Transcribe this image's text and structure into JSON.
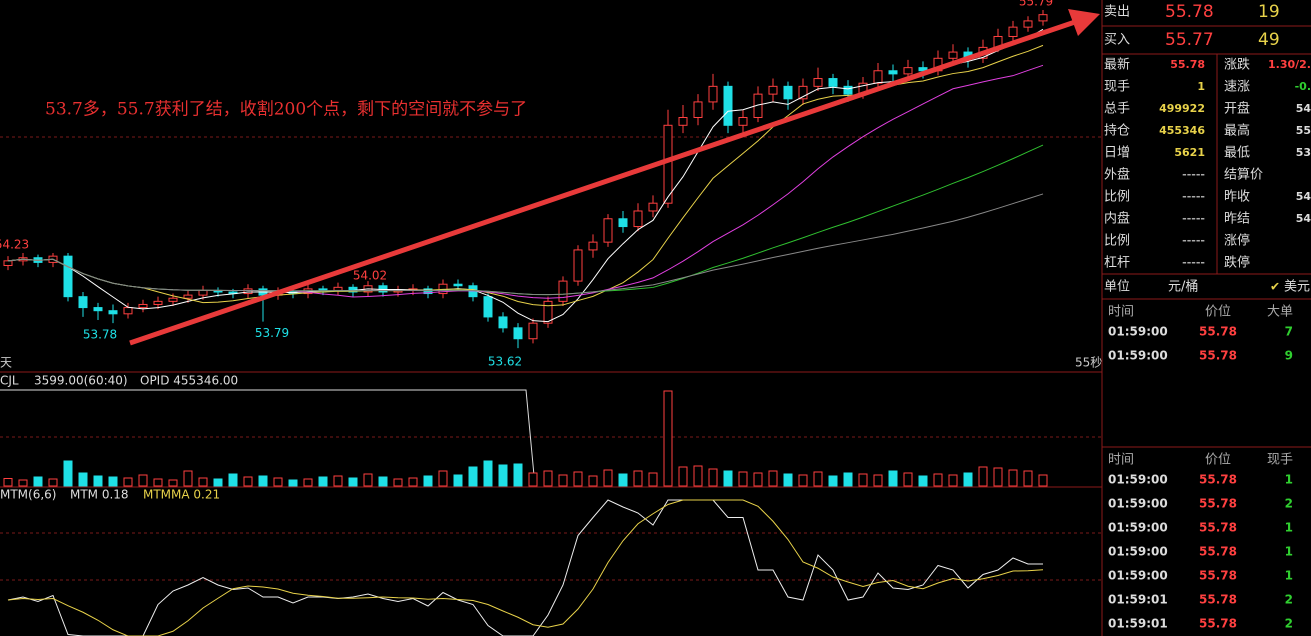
{
  "chart_data": {
    "type": "candlestick",
    "annotation": "53.7多，55.7获利了结，收割200个点，剩下的空间就不参与了",
    "open": [
      54.15,
      54.18,
      54.2,
      54.17,
      54.21,
      53.95,
      53.88,
      53.86,
      53.84,
      53.88,
      53.9,
      53.92,
      53.94,
      53.96,
      53.99,
      53.98,
      53.97,
      54.0,
      53.96,
      53.98,
      53.97,
      54.0,
      53.99,
      54.01,
      53.98,
      54.02,
      53.98,
      53.99,
      54.0,
      53.97,
      54.03,
      54.02,
      53.95,
      53.82,
      53.75,
      53.68,
      53.78,
      53.92,
      54.05,
      54.25,
      54.3,
      54.45,
      54.4,
      54.5,
      54.55,
      55.05,
      55.1,
      55.2,
      55.3,
      55.05,
      55.1,
      55.25,
      55.3,
      55.22,
      55.3,
      55.35,
      55.3,
      55.25,
      55.32,
      55.4,
      55.38,
      55.42,
      55.4,
      55.48,
      55.52,
      55.48,
      55.55,
      55.62,
      55.68,
      55.72
    ],
    "high": [
      54.21,
      54.23,
      54.22,
      54.23,
      54.23,
      53.98,
      53.91,
      53.9,
      53.91,
      53.93,
      53.95,
      53.97,
      53.99,
      54.02,
      54.01,
      54.0,
      54.03,
      54.02,
      54.01,
      54.0,
      54.03,
      54.02,
      54.04,
      54.03,
      54.05,
      54.04,
      54.02,
      54.03,
      54.02,
      54.06,
      54.06,
      54.04,
      53.97,
      53.85,
      53.78,
      53.81,
      53.95,
      54.08,
      54.28,
      54.35,
      54.48,
      54.5,
      54.55,
      54.6,
      55.15,
      55.18,
      55.25,
      55.38,
      55.33,
      55.15,
      55.3,
      55.35,
      55.33,
      55.35,
      55.42,
      55.38,
      55.34,
      55.36,
      55.45,
      55.44,
      55.47,
      55.46,
      55.53,
      55.57,
      55.55,
      55.6,
      55.67,
      55.72,
      55.75,
      55.79
    ],
    "low": [
      54.12,
      54.15,
      54.14,
      54.14,
      53.92,
      53.82,
      53.8,
      53.78,
      53.81,
      53.85,
      53.87,
      53.89,
      53.91,
      53.93,
      53.95,
      53.94,
      53.94,
      53.79,
      53.93,
      53.94,
      53.94,
      53.96,
      53.96,
      53.95,
      53.95,
      53.95,
      53.95,
      53.96,
      53.94,
      53.94,
      53.99,
      53.92,
      53.79,
      53.72,
      53.62,
      53.65,
      53.75,
      53.89,
      54.02,
      54.2,
      54.27,
      54.36,
      54.37,
      54.46,
      54.52,
      55.0,
      55.05,
      55.15,
      55.0,
      55.0,
      55.07,
      55.2,
      55.15,
      55.18,
      55.27,
      55.25,
      55.2,
      55.22,
      55.29,
      55.33,
      55.35,
      55.35,
      55.37,
      55.45,
      55.42,
      55.45,
      55.52,
      55.59,
      55.65,
      55.69
    ],
    "close": [
      54.18,
      54.2,
      54.17,
      54.21,
      53.95,
      53.88,
      53.86,
      53.84,
      53.88,
      53.9,
      53.92,
      53.94,
      53.96,
      53.99,
      53.98,
      53.97,
      54.0,
      53.96,
      53.98,
      53.97,
      54.0,
      53.99,
      54.01,
      53.98,
      54.02,
      53.98,
      53.99,
      54.0,
      53.97,
      54.03,
      54.02,
      53.95,
      53.82,
      53.75,
      53.68,
      53.78,
      53.92,
      54.05,
      54.25,
      54.3,
      54.45,
      54.4,
      54.5,
      54.55,
      55.05,
      55.1,
      55.2,
      55.3,
      55.05,
      55.1,
      55.25,
      55.3,
      55.22,
      55.3,
      55.35,
      55.3,
      55.25,
      55.32,
      55.4,
      55.38,
      55.42,
      55.4,
      55.48,
      55.52,
      55.48,
      55.55,
      55.62,
      55.68,
      55.72,
      55.76
    ],
    "volume": [
      150,
      120,
      180,
      140,
      500,
      260,
      200,
      180,
      160,
      220,
      140,
      120,
      300,
      160,
      140,
      240,
      180,
      200,
      160,
      120,
      140,
      180,
      200,
      160,
      240,
      180,
      140,
      160,
      200,
      300,
      220,
      380,
      500,
      420,
      440,
      260,
      300,
      220,
      280,
      200,
      320,
      240,
      300,
      260,
      1900,
      380,
      400,
      340,
      300,
      280,
      260,
      300,
      240,
      220,
      280,
      200,
      260,
      240,
      220,
      300,
      260,
      200,
      240,
      220,
      260,
      380,
      360,
      320,
      300,
      220
    ],
    "extremes": [
      54.23,
      53.78,
      53.79,
      54.02,
      53.62,
      55.79
    ],
    "period": "天",
    "countdown": "55秒",
    "volume_legend": [
      "CJL",
      "3599.00(60:40)",
      "OPID 455346.00"
    ],
    "mtm_legend": [
      "MTM(6,6)",
      "MTM 0.18",
      "MTMMA 0.21"
    ]
  },
  "quote": {
    "top": [
      [
        "卖出",
        "55.78",
        "19"
      ],
      [
        "买入",
        "55.77",
        "49"
      ]
    ],
    "rows": [
      [
        "最新",
        "55.78",
        "涨跌",
        "1.30/2."
      ],
      [
        "现手",
        "1",
        "速涨",
        "-0."
      ],
      [
        "总手",
        "499922",
        "开盘",
        "54"
      ],
      [
        "持仓",
        "455346",
        "最高",
        "55"
      ],
      [
        "日增",
        "5621",
        "最低",
        "53"
      ],
      [
        "外盘",
        "-----",
        "结算价",
        ""
      ],
      [
        "比例",
        "-----",
        "昨收",
        "54"
      ],
      [
        "内盘",
        "-----",
        "昨结",
        "54"
      ],
      [
        "比例",
        "-----",
        "涨停",
        ""
      ],
      [
        "杠杆",
        "-----",
        "跌停",
        ""
      ]
    ],
    "unit": [
      "单位",
      "元/桶",
      "美元"
    ],
    "big_header": [
      "时间",
      "价位",
      "大单"
    ],
    "big_rows": [
      [
        "01:59:00",
        "55.78",
        "7"
      ],
      [
        "01:59:00",
        "55.78",
        "9"
      ]
    ],
    "tick_header": [
      "时间",
      "价位",
      "现手"
    ],
    "tick_rows": [
      [
        "01:59:00",
        "55.78",
        "1"
      ],
      [
        "01:59:00",
        "55.78",
        "2"
      ],
      [
        "01:59:00",
        "55.78",
        "1"
      ],
      [
        "01:59:00",
        "55.78",
        "1"
      ],
      [
        "01:59:00",
        "55.78",
        "1"
      ],
      [
        "01:59:01",
        "55.78",
        "2"
      ],
      [
        "01:59:01",
        "55.78",
        "2"
      ]
    ]
  }
}
